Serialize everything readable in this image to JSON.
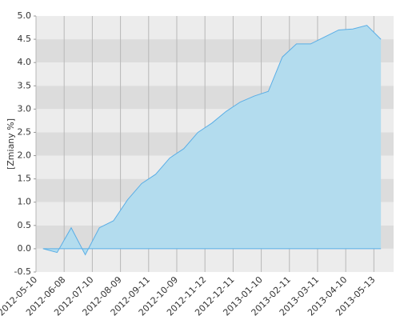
{
  "chart_data": {
    "type": "area",
    "y_label": "[Zmiany %]",
    "x_tick_labels": [
      "2012-05-10",
      "2012-06-08",
      "2012-07-10",
      "2012-08-09",
      "2012-09-11",
      "2012-10-09",
      "2012-11-12",
      "2012-12-11",
      "2013-01-10",
      "2013-02-11",
      "2013-03-11",
      "2013-04-10",
      "2013-05-13"
    ],
    "values": [
      0.0,
      -0.08,
      0.45,
      -0.13,
      0.45,
      0.6,
      1.05,
      1.4,
      1.6,
      1.95,
      2.15,
      2.5,
      2.7,
      2.95,
      3.15,
      3.28,
      3.38,
      4.12,
      4.4,
      4.4,
      4.55,
      4.7,
      4.72,
      4.8,
      4.5
    ],
    "color": "#5aaee6",
    "fill": "#b3dcee",
    "ylim": [
      -0.5,
      5.0
    ],
    "yticks": [
      {
        "value": 5.0,
        "label": "5.0"
      },
      {
        "value": 4.5,
        "label": "4.5"
      },
      {
        "value": 4.0,
        "label": "4.0"
      },
      {
        "value": 3.5,
        "label": "3.5"
      },
      {
        "value": 3.0,
        "label": "3.0"
      },
      {
        "value": 2.5,
        "label": "2.5"
      },
      {
        "value": 2.0,
        "label": "2.0"
      },
      {
        "value": 1.5,
        "label": "1.5"
      },
      {
        "value": 1.0,
        "label": "1.0"
      },
      {
        "value": 0.5,
        "label": "0.5"
      },
      {
        "value": 0.0,
        "label": "0.0"
      },
      {
        "value": -0.5,
        "label": "-0.5"
      }
    ],
    "grid": true
  }
}
